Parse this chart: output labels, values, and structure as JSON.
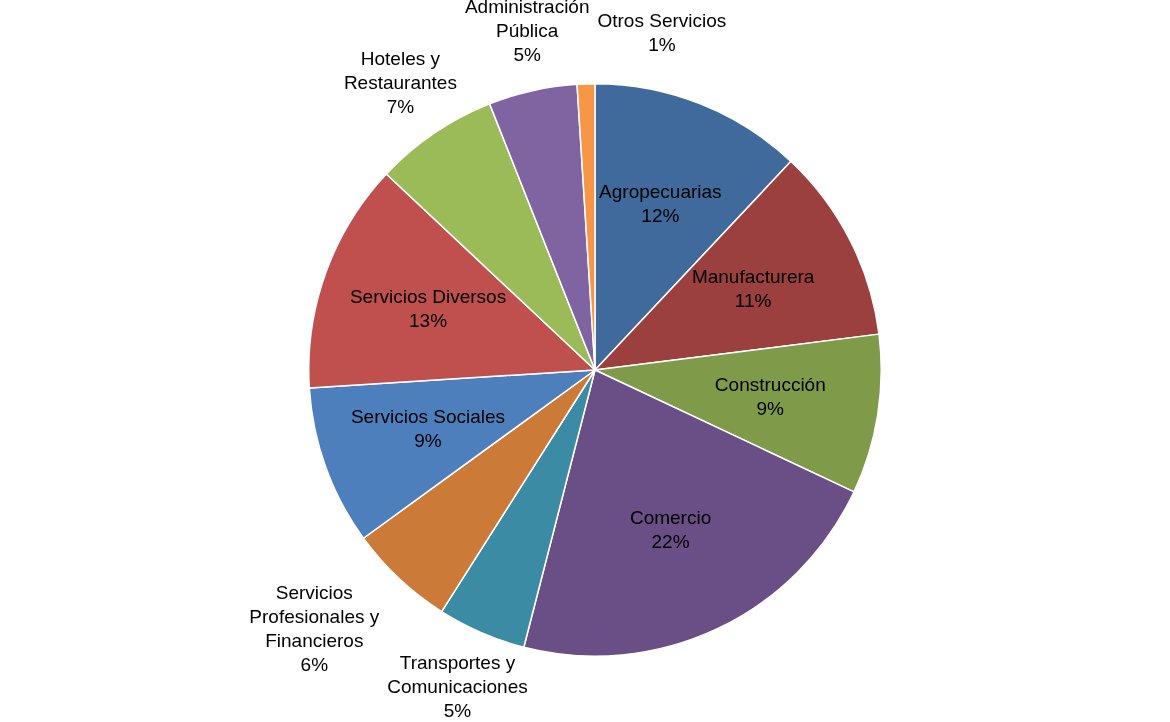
{
  "chart_data": {
    "type": "pie",
    "categories": [
      "Agropecuarias",
      "Manufacturera",
      "Construcción",
      "Comercio",
      "Transportes y Comunicaciones",
      "Servicios Profesionales y Financieros",
      "Servicios Sociales",
      "Servicios Diversos",
      "Hoteles y Restaurantes",
      "Administración Pública",
      "Otros Servicios"
    ],
    "values": [
      12,
      11,
      9,
      22,
      5,
      6,
      9,
      13,
      7,
      5,
      1
    ],
    "colors": [
      "#3f6a9b",
      "#9b403e",
      "#7f9a48",
      "#694f86",
      "#3a8ba3",
      "#cc7a38",
      "#4e7fbd",
      "#c0504d",
      "#9bbb59",
      "#8064a2",
      "#f79646"
    ],
    "value_labels": [
      "12%",
      "11%",
      "9%",
      "22%",
      "5%",
      "6%",
      "9%",
      "13%",
      "7%",
      "5%",
      "1%"
    ],
    "legend": false
  }
}
